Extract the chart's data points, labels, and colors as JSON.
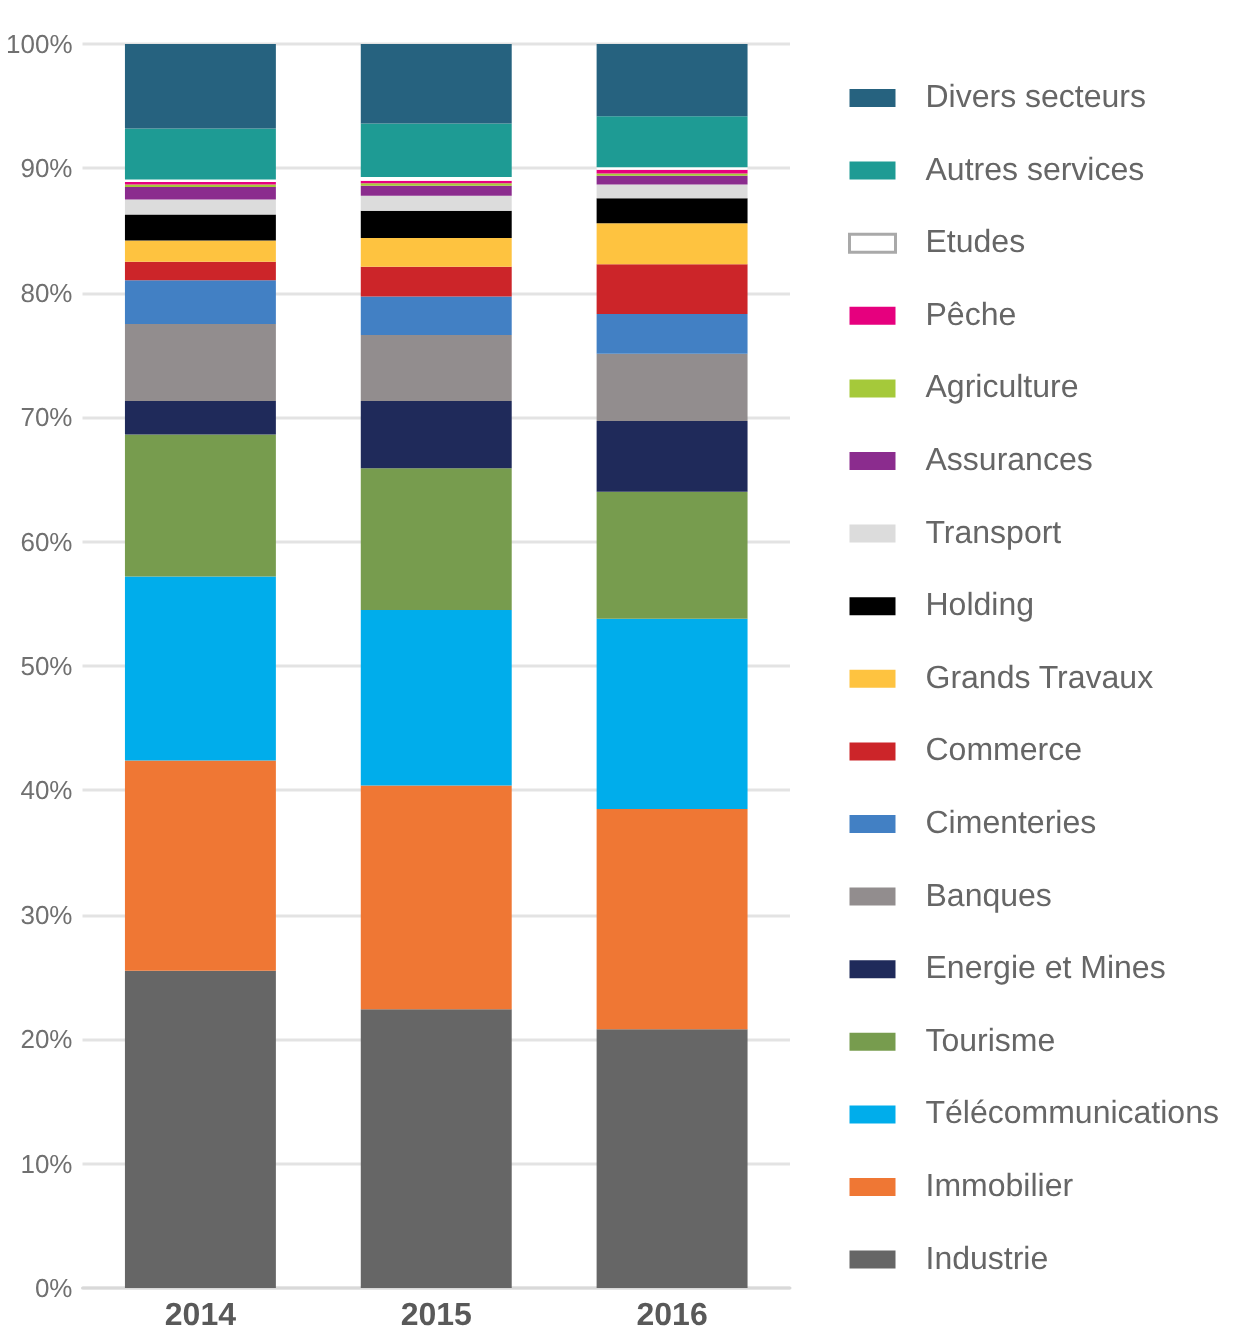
{
  "chart_data": {
    "type": "bar",
    "stacked": true,
    "categories": [
      "2014",
      "2015",
      "2016"
    ],
    "series": [
      {
        "name": "Industrie",
        "color": "#666666",
        "values": [
          25.5,
          22.4,
          20.8
        ]
      },
      {
        "name": "Immobilier",
        "color": "#ef7734",
        "values": [
          16.9,
          18.0,
          17.7
        ]
      },
      {
        "name": "Télécommunications",
        "color": "#00adeb",
        "values": [
          14.8,
          14.1,
          15.3
        ]
      },
      {
        "name": "Tourisme",
        "color": "#779c4e",
        "values": [
          11.4,
          11.4,
          10.2
        ]
      },
      {
        "name": "Energie et Mines",
        "color": "#1f2a5a",
        "values": [
          2.7,
          5.4,
          5.7
        ]
      },
      {
        "name": "Banques",
        "color": "#928d8e",
        "values": [
          6.2,
          5.3,
          5.4
        ]
      },
      {
        "name": "Cimenteries",
        "color": "#4280c4",
        "values": [
          3.5,
          3.1,
          3.2
        ]
      },
      {
        "name": "Commerce",
        "color": "#cc2529",
        "values": [
          1.5,
          2.4,
          4.0
        ]
      },
      {
        "name": "Grands Travaux",
        "color": "#fec340",
        "values": [
          1.7,
          2.3,
          3.3
        ]
      },
      {
        "name": "Holding",
        "color": "#000000",
        "values": [
          2.1,
          2.2,
          2.0
        ]
      },
      {
        "name": "Transport",
        "color": "#dcdcdc",
        "values": [
          1.2,
          1.2,
          1.1
        ]
      },
      {
        "name": "Assurances",
        "color": "#8b2c8e",
        "values": [
          1.0,
          0.8,
          0.7
        ]
      },
      {
        "name": "Agriculture",
        "color": "#a5c93a",
        "values": [
          0.2,
          0.2,
          0.2
        ]
      },
      {
        "name": "Pêche",
        "color": "#e6007e",
        "values": [
          0.2,
          0.2,
          0.3
        ]
      },
      {
        "name": "Etudes",
        "color": "#ffffff",
        "values": [
          0.2,
          0.3,
          0.2
        ]
      },
      {
        "name": "Autres services",
        "color": "#1e9b94",
        "values": [
          4.1,
          4.3,
          4.1
        ]
      },
      {
        "name": "Divers secteurs",
        "color": "#26627f",
        "values": [
          6.8,
          6.4,
          5.8
        ]
      }
    ],
    "ylim": [
      0,
      100
    ],
    "yticks": [
      {
        "value": 0,
        "label": "0%"
      },
      {
        "value": 10,
        "label": "10%"
      },
      {
        "value": 20,
        "label": "20%"
      },
      {
        "value": 30,
        "label": "30%"
      },
      {
        "value": 40,
        "label": "40%"
      },
      {
        "value": 50,
        "label": "50%"
      },
      {
        "value": 60,
        "label": "60%"
      },
      {
        "value": 70,
        "label": "70%"
      },
      {
        "value": 80,
        "label": "80%"
      },
      {
        "value": 90,
        "label": "90%"
      },
      {
        "value": 100,
        "label": "100%"
      }
    ],
    "grid": "y",
    "legend": "right"
  }
}
